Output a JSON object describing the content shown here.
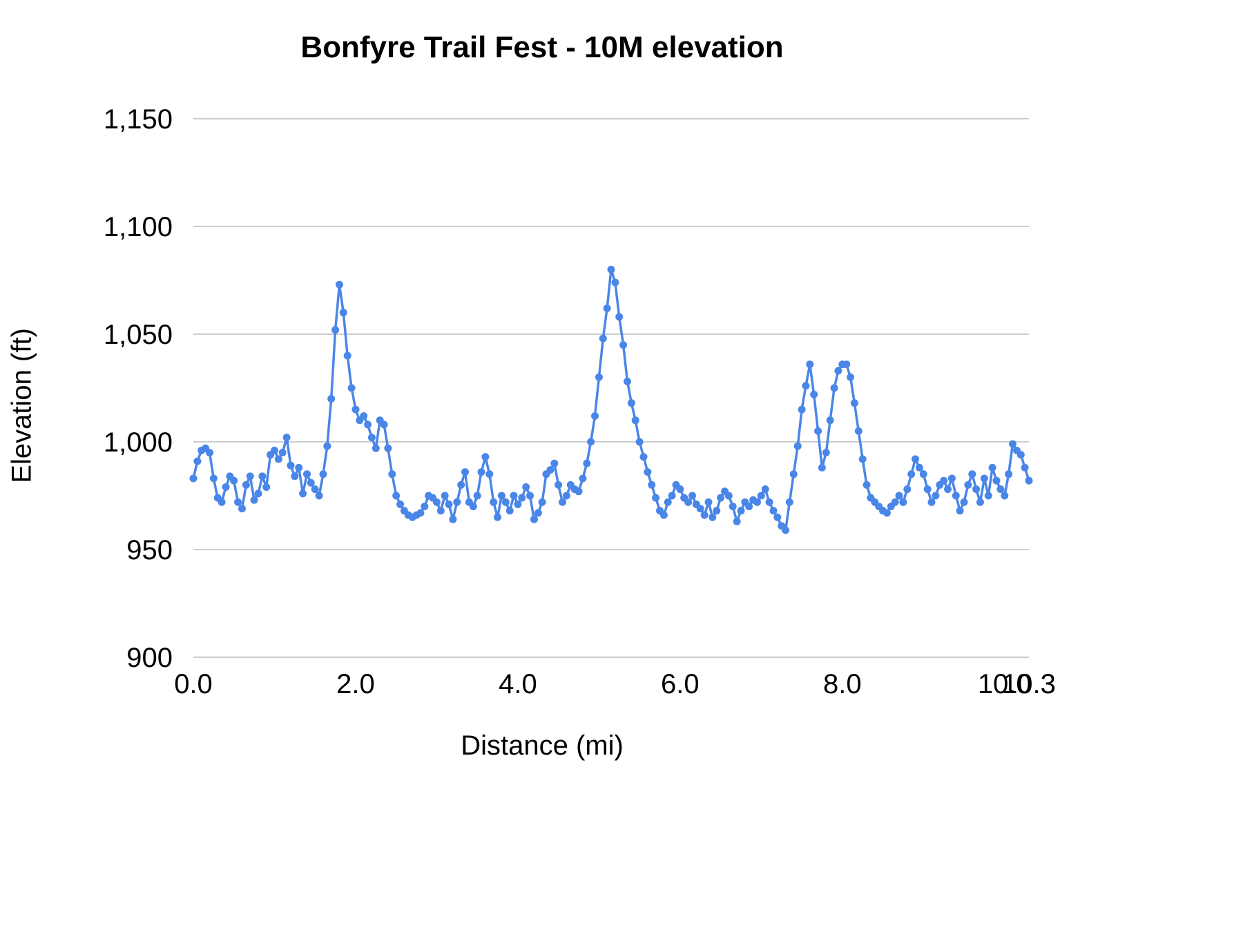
{
  "title": "Bonfyre Trail Fest - 10M elevation",
  "colors": {
    "series_blue": "#4a86e8",
    "gridline_gray": "#cccccc",
    "text_black": "#000000"
  },
  "chart_data": {
    "type": "line",
    "title": "Bonfyre Trail Fest - 10M elevation",
    "xlabel": "Distance (mi)",
    "ylabel": "Elevation (ft)",
    "xlim": [
      0,
      10.3
    ],
    "ylim": [
      900,
      1150
    ],
    "grid": "horizontal",
    "legend": "none",
    "marker": "circle",
    "x_ticks": [
      {
        "value": 0.0,
        "label": "0.0"
      },
      {
        "value": 2.0,
        "label": "2.0"
      },
      {
        "value": 4.0,
        "label": "4.0"
      },
      {
        "value": 6.0,
        "label": "6.0"
      },
      {
        "value": 8.0,
        "label": "8.0"
      },
      {
        "value": 10.0,
        "label": "10.0"
      },
      {
        "value": 10.3,
        "label": "10.3"
      }
    ],
    "y_ticks": [
      {
        "value": 900,
        "label": "900"
      },
      {
        "value": 950,
        "label": "950"
      },
      {
        "value": 1000,
        "label": "1,000"
      },
      {
        "value": 1050,
        "label": "1,050"
      },
      {
        "value": 1100,
        "label": "1,100"
      },
      {
        "value": 1150,
        "label": "1,150"
      }
    ],
    "series": [
      {
        "name": "elevation",
        "x_start": 0.0,
        "x_step": 0.05,
        "y": [
          983,
          991,
          996,
          997,
          995,
          983,
          974,
          972,
          979,
          984,
          982,
          972,
          969,
          980,
          984,
          973,
          976,
          984,
          979,
          994,
          996,
          992,
          995,
          1002,
          989,
          984,
          988,
          976,
          985,
          981,
          978,
          975,
          985,
          998,
          1020,
          1052,
          1073,
          1060,
          1040,
          1025,
          1015,
          1010,
          1012,
          1008,
          1002,
          997,
          1010,
          1008,
          997,
          985,
          975,
          971,
          968,
          966,
          965,
          966,
          967,
          970,
          975,
          974,
          972,
          968,
          975,
          971,
          964,
          972,
          980,
          986,
          972,
          970,
          975,
          986,
          993,
          985,
          972,
          965,
          975,
          972,
          968,
          975,
          971,
          974,
          979,
          975,
          964,
          967,
          972,
          985,
          987,
          990,
          980,
          972,
          975,
          980,
          978,
          977,
          983,
          990,
          1000,
          1012,
          1030,
          1048,
          1062,
          1080,
          1074,
          1058,
          1045,
          1028,
          1018,
          1010,
          1000,
          993,
          986,
          980,
          974,
          968,
          966,
          972,
          975,
          980,
          978,
          974,
          972,
          975,
          971,
          969,
          966,
          972,
          965,
          968,
          974,
          977,
          975,
          970,
          963,
          968,
          972,
          970,
          973,
          972,
          975,
          978,
          972,
          968,
          965,
          961,
          959,
          972,
          985,
          998,
          1015,
          1026,
          1036,
          1022,
          1005,
          988,
          995,
          1010,
          1025,
          1033,
          1036,
          1036,
          1030,
          1018,
          1005,
          992,
          980,
          974,
          972,
          970,
          968,
          967,
          970,
          972,
          975,
          972,
          978,
          985,
          992,
          988,
          985,
          978,
          972,
          975,
          980,
          982,
          978,
          983,
          975,
          968,
          972,
          980,
          985,
          978,
          972,
          983,
          975,
          988,
          982,
          978,
          975,
          985,
          999,
          996,
          994,
          988,
          982
        ]
      }
    ]
  }
}
